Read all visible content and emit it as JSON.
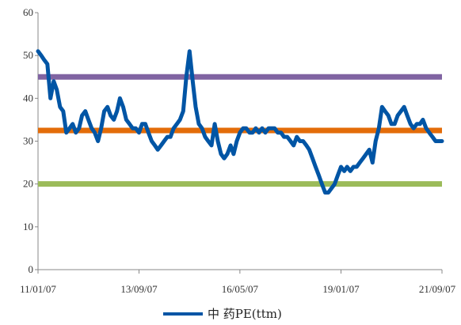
{
  "chart_data": {
    "type": "line",
    "title": "",
    "xlabel": "",
    "ylabel": "",
    "ylim": [
      0,
      60
    ],
    "yticks": [
      0,
      10,
      20,
      30,
      40,
      50,
      60
    ],
    "xlim": [
      "2011-01-07",
      "2021-09-07"
    ],
    "xticks": [
      {
        "date": "2011-01-07",
        "label": "11/01/07"
      },
      {
        "date": "2013-09-07",
        "label": "13/09/07"
      },
      {
        "date": "2016-05-07",
        "label": "16/05/07"
      },
      {
        "date": "2019-01-07",
        "label": "19/01/07"
      },
      {
        "date": "2021-09-07",
        "label": "21/09/07"
      }
    ],
    "grid": false,
    "legend": "bottom",
    "series": [
      {
        "name": "中 药PE(ttm)",
        "color": "#0055A5",
        "x": [
          "2011-01-07",
          "2011-02-07",
          "2011-03-07",
          "2011-04-07",
          "2011-05-07",
          "2011-06-07",
          "2011-07-07",
          "2011-08-07",
          "2011-09-07",
          "2011-10-07",
          "2011-11-07",
          "2011-12-07",
          "2012-01-07",
          "2012-02-07",
          "2012-03-07",
          "2012-04-07",
          "2012-05-07",
          "2012-06-07",
          "2012-07-07",
          "2012-08-07",
          "2012-09-07",
          "2012-10-07",
          "2012-11-07",
          "2012-12-07",
          "2013-01-07",
          "2013-02-07",
          "2013-03-07",
          "2013-04-07",
          "2013-05-07",
          "2013-06-07",
          "2013-07-07",
          "2013-08-07",
          "2013-09-07",
          "2013-10-07",
          "2013-11-07",
          "2013-12-07",
          "2014-01-07",
          "2014-02-07",
          "2014-03-07",
          "2014-04-07",
          "2014-05-07",
          "2014-06-07",
          "2014-07-07",
          "2014-08-07",
          "2014-09-07",
          "2014-10-07",
          "2014-11-07",
          "2014-12-07",
          "2015-01-07",
          "2015-02-07",
          "2015-03-07",
          "2015-04-07",
          "2015-05-07",
          "2015-06-07",
          "2015-07-07",
          "2015-08-07",
          "2015-09-07",
          "2015-10-07",
          "2015-11-07",
          "2015-12-07",
          "2016-01-07",
          "2016-02-07",
          "2016-03-07",
          "2016-04-07",
          "2016-05-07",
          "2016-06-07",
          "2016-07-07",
          "2016-08-07",
          "2016-09-07",
          "2016-10-07",
          "2016-11-07",
          "2016-12-07",
          "2017-01-07",
          "2017-02-07",
          "2017-03-07",
          "2017-04-07",
          "2017-05-07",
          "2017-06-07",
          "2017-07-07",
          "2017-08-07",
          "2017-09-07",
          "2017-10-07",
          "2017-11-07",
          "2017-12-07",
          "2018-01-07",
          "2018-02-07",
          "2018-03-07",
          "2018-04-07",
          "2018-05-07",
          "2018-06-07",
          "2018-07-07",
          "2018-08-07",
          "2018-09-07",
          "2018-10-07",
          "2018-11-07",
          "2018-12-07",
          "2019-01-07",
          "2019-02-07",
          "2019-03-07",
          "2019-04-07",
          "2019-05-07",
          "2019-06-07",
          "2019-07-07",
          "2019-08-07",
          "2019-09-07",
          "2019-10-07",
          "2019-11-07",
          "2019-12-07",
          "2020-01-07",
          "2020-02-07",
          "2020-03-07",
          "2020-04-07",
          "2020-05-07",
          "2020-06-07",
          "2020-07-07",
          "2020-08-07",
          "2020-09-07",
          "2020-10-07",
          "2020-11-07",
          "2020-12-07",
          "2021-01-07",
          "2021-02-07",
          "2021-03-07",
          "2021-04-07",
          "2021-05-07",
          "2021-06-07",
          "2021-07-07",
          "2021-08-07",
          "2021-09-07"
        ],
        "values": [
          51,
          50,
          49,
          48,
          40,
          44,
          42,
          38,
          37,
          32,
          33,
          34,
          32,
          33,
          36,
          37,
          35,
          33,
          32,
          30,
          33,
          37,
          38,
          36,
          35,
          37,
          40,
          38,
          35,
          34,
          33,
          33,
          32,
          34,
          34,
          32,
          30,
          29,
          28,
          29,
          30,
          31,
          31,
          33,
          34,
          35,
          37,
          45,
          51,
          44,
          38,
          34,
          33,
          31,
          30,
          29,
          34,
          30,
          27,
          26,
          27,
          29,
          27,
          30,
          32,
          33,
          33,
          32,
          32,
          33,
          32,
          33,
          32,
          33,
          33,
          33,
          32,
          32,
          31,
          31,
          30,
          29,
          31,
          30,
          30,
          29,
          28,
          26,
          24,
          22,
          20,
          18,
          18,
          19,
          20,
          22,
          24,
          23,
          24,
          23,
          24,
          24,
          25,
          26,
          27,
          28,
          25,
          30,
          33,
          38,
          37,
          36,
          34,
          34,
          36,
          37,
          38,
          36,
          34,
          33,
          34,
          34,
          35,
          33,
          32,
          31,
          30,
          30,
          30
        ]
      }
    ],
    "reference_lines": [
      {
        "value": 45,
        "color": "#8064A2"
      },
      {
        "value": 32.5,
        "color": "#E36C09"
      },
      {
        "value": 20,
        "color": "#9BBB59"
      }
    ]
  }
}
